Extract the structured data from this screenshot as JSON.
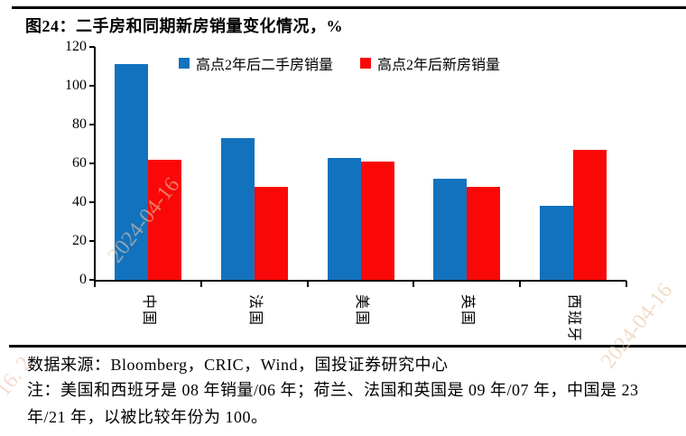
{
  "title": "图24：二手房和同期新房销量变化情况，%",
  "footer": {
    "source": "数据来源：Bloomberg，CRIC，Wind，国投证券研究中心",
    "note": "注：美国和西班牙是 08 年销量/06 年；荷兰、法国和英国是 09 年/07 年，中国是 23 年/21 年，以被比较年份为 100。"
  },
  "watermarks": [
    {
      "text": "2024-04-16"
    },
    {
      "text": "2024-04-16"
    },
    {
      "text": "16. 2"
    }
  ],
  "chart_data": {
    "type": "bar",
    "categories": [
      "中国",
      "法国",
      "美国",
      "英国",
      "西班牙"
    ],
    "series": [
      {
        "name": "高点2年后二手房销量",
        "color": "#1272BE",
        "values": [
          111,
          73,
          63,
          52,
          38
        ]
      },
      {
        "name": "高点2年后新房销量",
        "color": "#FA0808",
        "values": [
          62,
          48,
          61,
          48,
          67
        ]
      }
    ],
    "title": "二手房和同期新房销量变化情况",
    "xlabel": "",
    "ylabel": "%",
    "ylim": [
      0,
      120
    ],
    "y_ticks": [
      0,
      20,
      40,
      60,
      80,
      100,
      120
    ],
    "grid": false,
    "legend_position": "top"
  }
}
